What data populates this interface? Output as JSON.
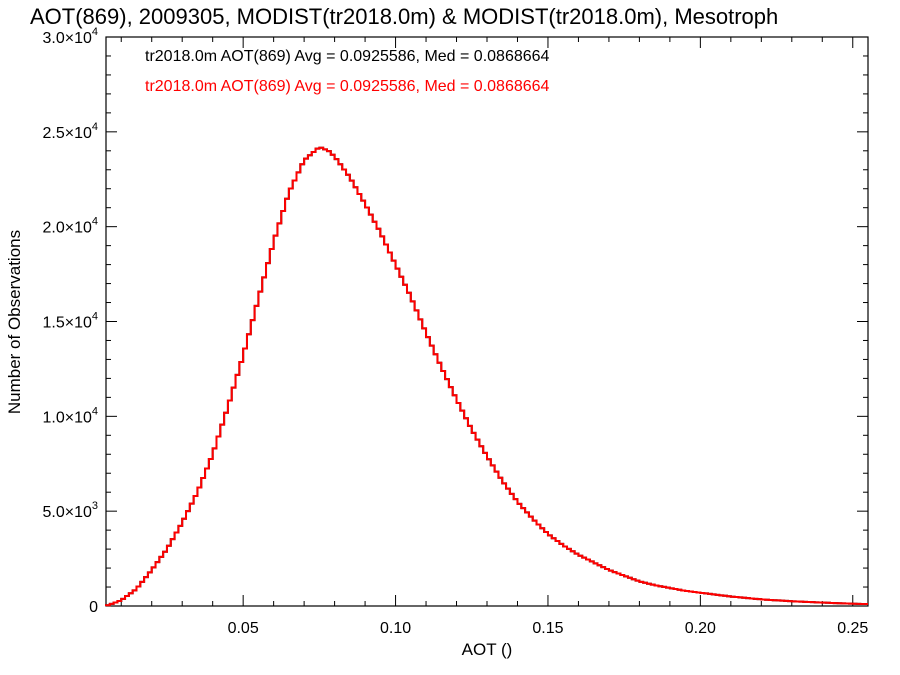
{
  "chart_data": {
    "type": "line",
    "title": "AOT(869), 2009305, MODIST(tr2018.0m) & MODIST(tr2018.0m), Mesotroph",
    "xlabel": "AOT ()",
    "ylabel": "Number of Observations",
    "xlim": [
      0.005,
      0.255
    ],
    "ylim": [
      0,
      30000
    ],
    "grid": false,
    "legend_position": "top-left",
    "x_ticks": [
      {
        "value": 0.05,
        "label": "0.05"
      },
      {
        "value": 0.1,
        "label": "0.10"
      },
      {
        "value": 0.15,
        "label": "0.15"
      },
      {
        "value": 0.2,
        "label": "0.20"
      },
      {
        "value": 0.25,
        "label": "0.25"
      }
    ],
    "y_ticks": [
      {
        "value": 0,
        "mant": "0",
        "exp": ""
      },
      {
        "value": 5000,
        "mant": "5.0×10",
        "exp": "3"
      },
      {
        "value": 10000,
        "mant": "1.0×10",
        "exp": "4"
      },
      {
        "value": 15000,
        "mant": "1.5×10",
        "exp": "4"
      },
      {
        "value": 20000,
        "mant": "2.0×10",
        "exp": "4"
      },
      {
        "value": 25000,
        "mant": "2.5×10",
        "exp": "4"
      },
      {
        "value": 30000,
        "mant": "3.0×10",
        "exp": "4"
      }
    ],
    "series": [
      {
        "name": "tr2018.0m AOT(869) Avg = 0.0925586, Med = 0.0868664",
        "color": "#000000",
        "x": [
          0.005,
          0.01,
          0.015,
          0.02,
          0.025,
          0.03,
          0.035,
          0.04,
          0.045,
          0.05,
          0.055,
          0.06,
          0.065,
          0.07,
          0.075,
          0.078,
          0.08,
          0.085,
          0.09,
          0.095,
          0.1,
          0.105,
          0.11,
          0.115,
          0.12,
          0.125,
          0.13,
          0.135,
          0.14,
          0.145,
          0.15,
          0.155,
          0.16,
          0.165,
          0.17,
          0.175,
          0.18,
          0.185,
          0.19,
          0.195,
          0.2,
          0.21,
          0.22,
          0.23,
          0.24,
          0.25,
          0.255
        ],
        "y": [
          0,
          300,
          900,
          1900,
          3000,
          4400,
          6000,
          8000,
          10500,
          13200,
          16200,
          19200,
          21800,
          23500,
          24200,
          24000,
          23700,
          22600,
          21200,
          19700,
          18000,
          16300,
          14400,
          12600,
          10900,
          9300,
          7900,
          6600,
          5500,
          4600,
          3800,
          3200,
          2700,
          2300,
          1900,
          1600,
          1300,
          1100,
          950,
          800,
          700,
          500,
          350,
          250,
          180,
          120,
          100
        ]
      },
      {
        "name": "tr2018.0m AOT(869) Avg = 0.0925586, Med = 0.0868664",
        "color": "#ff0000",
        "x": [
          0.005,
          0.01,
          0.015,
          0.02,
          0.025,
          0.03,
          0.035,
          0.04,
          0.045,
          0.05,
          0.055,
          0.06,
          0.065,
          0.07,
          0.075,
          0.078,
          0.08,
          0.085,
          0.09,
          0.095,
          0.1,
          0.105,
          0.11,
          0.115,
          0.12,
          0.125,
          0.13,
          0.135,
          0.14,
          0.145,
          0.15,
          0.155,
          0.16,
          0.165,
          0.17,
          0.175,
          0.18,
          0.185,
          0.19,
          0.195,
          0.2,
          0.21,
          0.22,
          0.23,
          0.24,
          0.25,
          0.255
        ],
        "y": [
          0,
          300,
          900,
          1900,
          3000,
          4400,
          6000,
          8000,
          10500,
          13200,
          16200,
          19200,
          21800,
          23500,
          24200,
          24000,
          23700,
          22600,
          21200,
          19700,
          18000,
          16300,
          14400,
          12600,
          10900,
          9300,
          7900,
          6600,
          5500,
          4600,
          3800,
          3200,
          2700,
          2300,
          1900,
          1600,
          1300,
          1100,
          950,
          800,
          700,
          500,
          350,
          250,
          180,
          120,
          100
        ]
      }
    ]
  }
}
